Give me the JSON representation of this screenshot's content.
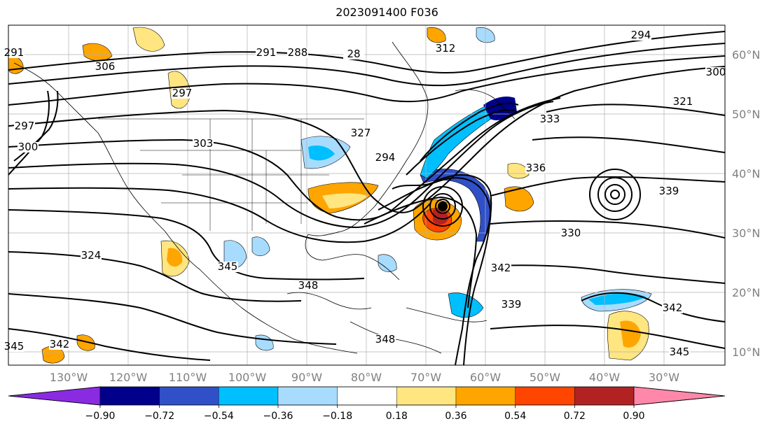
{
  "title": "2023091400 F036",
  "map": {
    "lon_labels": [
      "130°W",
      "120°W",
      "110°W",
      "100°W",
      "90°W",
      "80°W",
      "70°W",
      "60°W",
      "50°W",
      "40°W",
      "30°W"
    ],
    "lat_labels": [
      "60°N",
      "50°N",
      "40°N",
      "30°N",
      "20°N",
      "10°N"
    ],
    "contour_labels": [
      "294",
      "291",
      "288",
      "28",
      "312",
      "306",
      "297",
      "300",
      "321",
      "303",
      "327",
      "333",
      "336",
      "339",
      "330",
      "324",
      "345",
      "342",
      "348",
      "339",
      "342",
      "345",
      "342",
      "348",
      "345",
      "291",
      "297",
      "294",
      "300"
    ]
  },
  "colorbar": {
    "ticks": [
      "−0.90",
      "−0.72",
      "−0.54",
      "−0.36",
      "−0.18",
      "0.18",
      "0.36",
      "0.54",
      "0.72",
      "0.90"
    ],
    "colors": [
      "#8a2be2",
      "#00008b",
      "#3050c8",
      "#00bfff",
      "#a8dcff",
      "#ffffff",
      "#ffe680",
      "#ffa500",
      "#ff4500",
      "#b22222",
      "#ff88aa"
    ]
  }
}
